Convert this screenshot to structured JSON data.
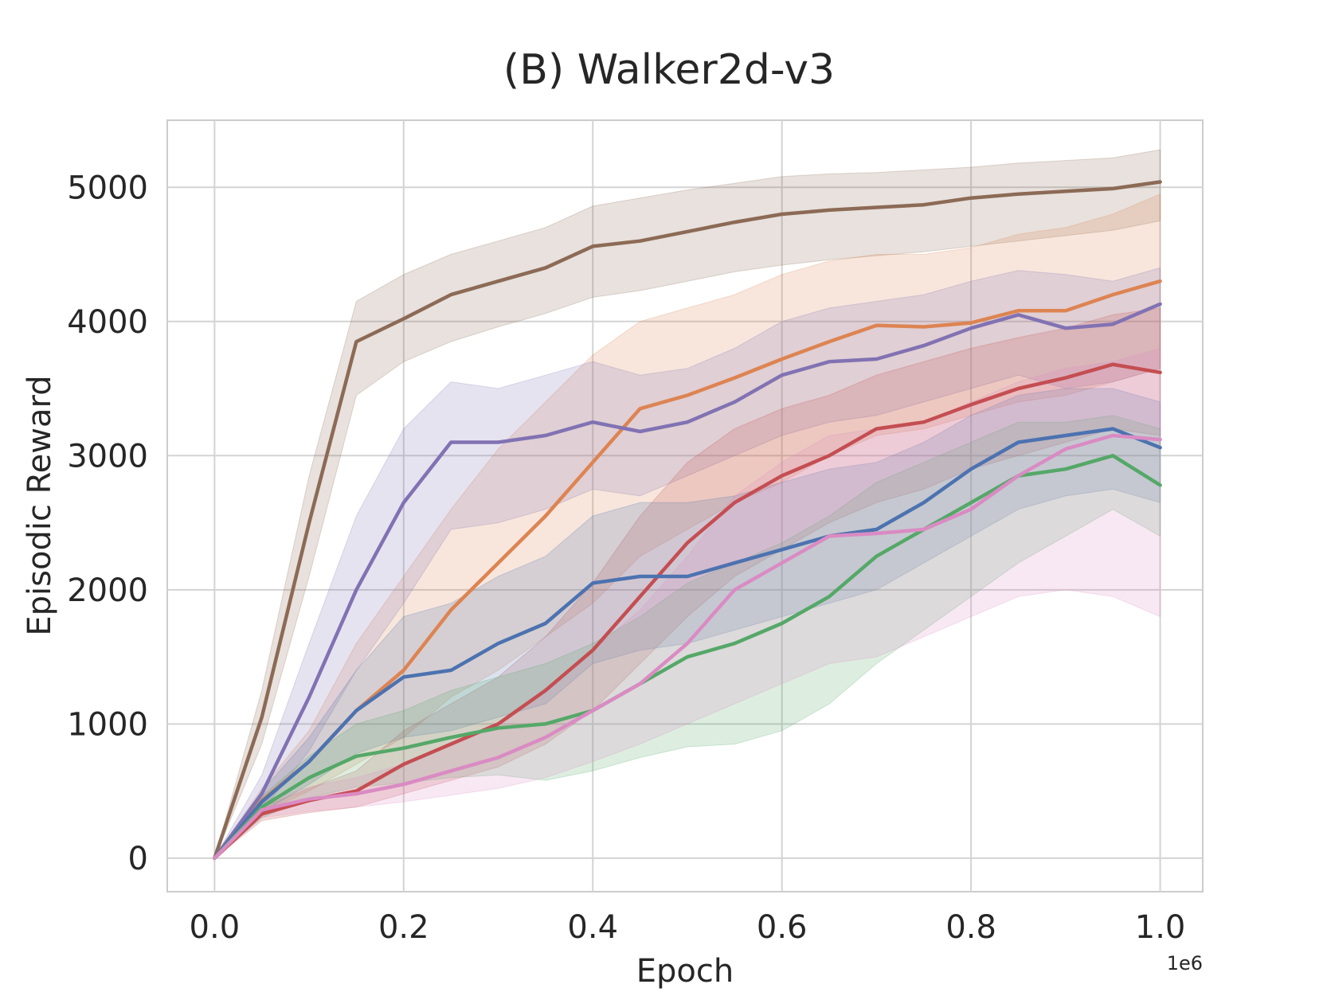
{
  "chart_data": {
    "type": "line",
    "title": "(B) Walker2d-v3",
    "xlabel": "Epoch",
    "ylabel": "Episodic Reward",
    "x_scale_label": "1e6",
    "xlim": [
      -0.05,
      1.045
    ],
    "ylim": [
      -250,
      5500
    ],
    "xticks": [
      0.0,
      0.2,
      0.4,
      0.6,
      0.8,
      1.0
    ],
    "xtick_labels": [
      "0.0",
      "0.2",
      "0.4",
      "0.6",
      "0.8",
      "1.0"
    ],
    "yticks": [
      0,
      1000,
      2000,
      3000,
      4000,
      5000
    ],
    "ytick_labels": [
      "0",
      "1000",
      "2000",
      "3000",
      "4000",
      "5000"
    ],
    "grid": true,
    "x": [
      0.0,
      0.05,
      0.1,
      0.15,
      0.2,
      0.25,
      0.3,
      0.35,
      0.4,
      0.45,
      0.5,
      0.55,
      0.6,
      0.65,
      0.7,
      0.75,
      0.8,
      0.85,
      0.9,
      0.95,
      1.0
    ],
    "series": [
      {
        "name": "brown",
        "color": "#8c6a55",
        "values": [
          0,
          1050,
          2500,
          3850,
          4020,
          4200,
          4300,
          4400,
          4560,
          4600,
          4670,
          4740,
          4800,
          4830,
          4850,
          4870,
          4920,
          4950,
          4970,
          4990,
          5040
        ],
        "lower": [
          0,
          850,
          2100,
          3450,
          3700,
          3850,
          3960,
          4060,
          4180,
          4230,
          4300,
          4370,
          4420,
          4460,
          4490,
          4520,
          4560,
          4600,
          4640,
          4680,
          4750
        ],
        "upper": [
          0,
          1250,
          2850,
          4150,
          4350,
          4500,
          4600,
          4700,
          4860,
          4920,
          4980,
          5030,
          5080,
          5100,
          5110,
          5130,
          5150,
          5180,
          5200,
          5220,
          5280
        ]
      },
      {
        "name": "orange",
        "color": "#dd8452",
        "values": [
          0,
          430,
          720,
          1100,
          1400,
          1850,
          2200,
          2550,
          2950,
          3350,
          3450,
          3580,
          3720,
          3850,
          3970,
          3960,
          3990,
          4080,
          4080,
          4200,
          4300
        ],
        "lower": [
          0,
          340,
          500,
          700,
          900,
          1200,
          1400,
          1650,
          1900,
          2250,
          2450,
          2650,
          2800,
          3000,
          3150,
          3200,
          3300,
          3400,
          3450,
          3550,
          3650
        ],
        "upper": [
          0,
          520,
          950,
          1600,
          2100,
          2600,
          3050,
          3400,
          3750,
          4000,
          4100,
          4200,
          4350,
          4450,
          4500,
          4500,
          4550,
          4650,
          4700,
          4800,
          4950
        ]
      },
      {
        "name": "purple",
        "color": "#8172b3",
        "values": [
          0,
          480,
          1200,
          2000,
          2650,
          3100,
          3100,
          3150,
          3250,
          3180,
          3250,
          3400,
          3600,
          3700,
          3720,
          3820,
          3950,
          4050,
          3950,
          3980,
          4130
        ],
        "lower": [
          0,
          350,
          800,
          1400,
          1900,
          2450,
          2500,
          2600,
          2750,
          2700,
          2850,
          3000,
          3150,
          3250,
          3300,
          3400,
          3500,
          3600,
          3500,
          3550,
          3650
        ],
        "upper": [
          0,
          620,
          1600,
          2550,
          3200,
          3550,
          3500,
          3600,
          3700,
          3600,
          3650,
          3800,
          4000,
          4100,
          4150,
          4200,
          4300,
          4380,
          4350,
          4300,
          4400
        ]
      },
      {
        "name": "red",
        "color": "#c44e52",
        "values": [
          0,
          330,
          430,
          500,
          700,
          850,
          1000,
          1250,
          1550,
          1950,
          2350,
          2650,
          2850,
          3000,
          3200,
          3250,
          3380,
          3500,
          3580,
          3680,
          3620
        ],
        "lower": [
          0,
          280,
          340,
          380,
          480,
          580,
          680,
          850,
          1100,
          1450,
          1800,
          2100,
          2300,
          2500,
          2650,
          2750,
          2900,
          3000,
          3100,
          3200,
          3150
        ],
        "upper": [
          0,
          380,
          520,
          650,
          950,
          1150,
          1350,
          1650,
          2050,
          2550,
          2950,
          3200,
          3350,
          3450,
          3600,
          3700,
          3800,
          3880,
          3950,
          4050,
          4100
        ]
      },
      {
        "name": "blue",
        "color": "#4c72b0",
        "values": [
          0,
          420,
          720,
          1100,
          1350,
          1400,
          1600,
          1750,
          2050,
          2100,
          2100,
          2200,
          2300,
          2400,
          2450,
          2650,
          2900,
          3100,
          3150,
          3200,
          3060
        ],
        "lower": [
          0,
          340,
          550,
          780,
          900,
          950,
          1050,
          1150,
          1450,
          1550,
          1600,
          1700,
          1800,
          1900,
          2000,
          2200,
          2400,
          2600,
          2700,
          2750,
          2650
        ],
        "upper": [
          0,
          500,
          900,
          1400,
          1800,
          1900,
          2100,
          2250,
          2550,
          2650,
          2650,
          2700,
          2800,
          2900,
          2950,
          3100,
          3300,
          3450,
          3500,
          3500,
          3400
        ]
      },
      {
        "name": "green",
        "color": "#55a868",
        "values": [
          0,
          380,
          600,
          760,
          820,
          900,
          970,
          1000,
          1100,
          1300,
          1500,
          1600,
          1750,
          1950,
          2250,
          2450,
          2650,
          2850,
          2900,
          3000,
          2780
        ],
        "lower": [
          0,
          300,
          450,
          530,
          560,
          600,
          620,
          580,
          650,
          750,
          830,
          850,
          950,
          1150,
          1450,
          1700,
          1950,
          2200,
          2400,
          2600,
          2400
        ],
        "upper": [
          0,
          460,
          760,
          1000,
          1100,
          1250,
          1350,
          1450,
          1600,
          1800,
          2050,
          2200,
          2350,
          2550,
          2800,
          2950,
          3100,
          3250,
          3250,
          3300,
          3200
        ]
      },
      {
        "name": "pink",
        "color": "#da8bc3",
        "values": [
          0,
          360,
          440,
          480,
          550,
          650,
          750,
          900,
          1100,
          1300,
          1600,
          2000,
          2200,
          2400,
          2420,
          2450,
          2600,
          2850,
          3050,
          3150,
          3120
        ],
        "lower": [
          0,
          300,
          350,
          380,
          420,
          470,
          520,
          600,
          720,
          850,
          1000,
          1150,
          1300,
          1450,
          1500,
          1650,
          1800,
          1950,
          2000,
          1950,
          1800
        ],
        "upper": [
          0,
          420,
          530,
          600,
          700,
          850,
          1000,
          1250,
          1550,
          1850,
          2250,
          2700,
          2950,
          3150,
          3200,
          3250,
          3400,
          3550,
          3650,
          3700,
          3800
        ]
      }
    ]
  }
}
